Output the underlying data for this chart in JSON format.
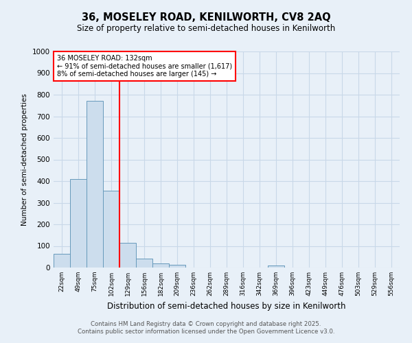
{
  "title": "36, MOSELEY ROAD, KENILWORTH, CV8 2AQ",
  "subtitle": "Size of property relative to semi-detached houses in Kenilworth",
  "xlabel": "Distribution of semi-detached houses by size in Kenilworth",
  "ylabel": "Number of semi-detached properties",
  "footer_line1": "Contains HM Land Registry data © Crown copyright and database right 2025.",
  "footer_line2": "Contains public sector information licensed under the Open Government Licence v3.0.",
  "bin_labels": [
    "22sqm",
    "49sqm",
    "75sqm",
    "102sqm",
    "129sqm",
    "156sqm",
    "182sqm",
    "209sqm",
    "236sqm",
    "262sqm",
    "289sqm",
    "316sqm",
    "342sqm",
    "369sqm",
    "396sqm",
    "423sqm",
    "449sqm",
    "476sqm",
    "503sqm",
    "529sqm",
    "556sqm"
  ],
  "bar_values": [
    65,
    410,
    770,
    355,
    115,
    40,
    20,
    12,
    0,
    0,
    0,
    0,
    0,
    8,
    0,
    0,
    0,
    0,
    0,
    0,
    0
  ],
  "bar_color": "#ccdded",
  "bar_edge_color": "#6699bb",
  "vline_x": 4,
  "vline_color": "red",
  "annotation_title": "36 MOSELEY ROAD: 132sqm",
  "annotation_line1": "← 91% of semi-detached houses are smaller (1,617)",
  "annotation_line2": "8% of semi-detached houses are larger (145) →",
  "annotation_box_color": "white",
  "annotation_box_edge": "red",
  "ylim": [
    0,
    1000
  ],
  "yticks": [
    0,
    100,
    200,
    300,
    400,
    500,
    600,
    700,
    800,
    900,
    1000
  ],
  "grid_color": "#c8d8e8",
  "bg_color": "#e8f0f8"
}
